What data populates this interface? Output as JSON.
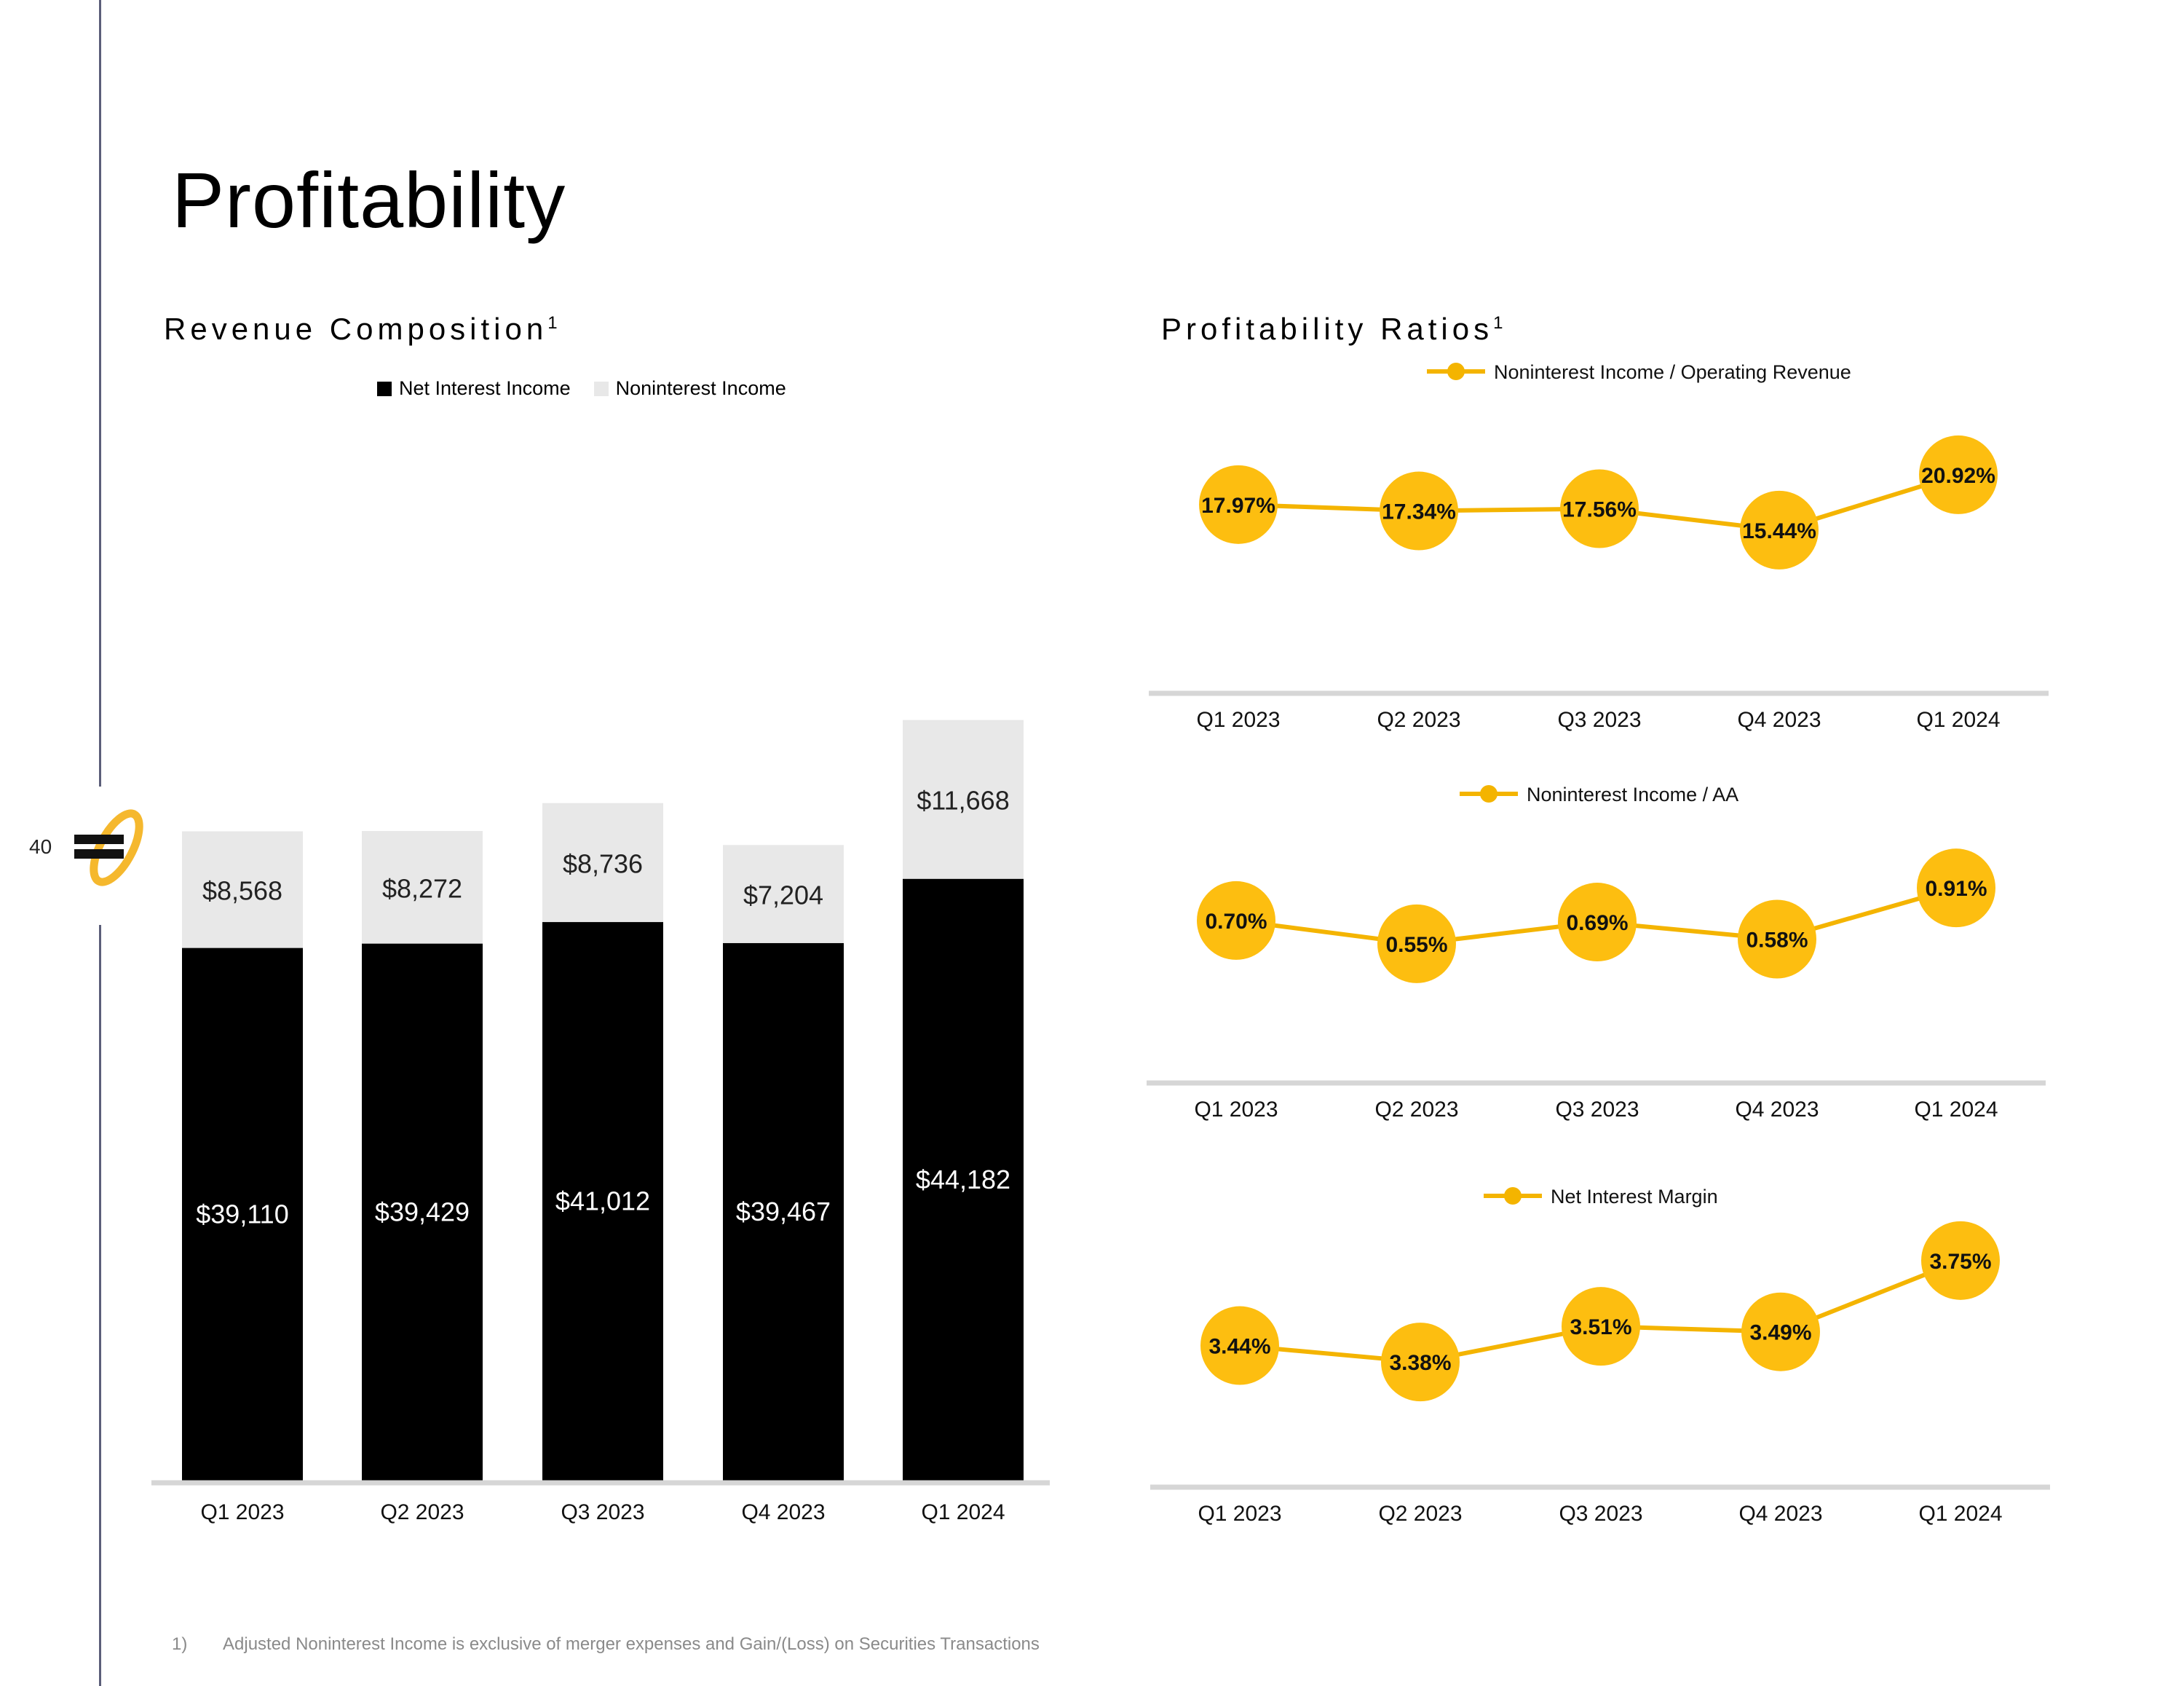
{
  "page": {
    "title": "Profitability",
    "page_number": "40",
    "footnote_number": "1)",
    "footnote_text": "Adjusted Noninterest Income is exclusive of merger expenses and Gain/(Loss) on Securities Transactions"
  },
  "colors": {
    "accent": "#FDBE10",
    "line": "#F4B400",
    "dark": "#000000",
    "light": "#E8E8E8",
    "axis": "#D6D6D6",
    "rule": "#5B5E79"
  },
  "sections": {
    "revenue_title": "Revenue Composition",
    "revenue_sup": "1",
    "ratios_title": "Profitability Ratios",
    "ratios_sup": "1"
  },
  "chart_data": [
    {
      "type": "bar",
      "stacked": true,
      "title": "Revenue Composition",
      "categories": [
        "Q1 2023",
        "Q2 2023",
        "Q3 2023",
        "Q4 2023",
        "Q1 2024"
      ],
      "series": [
        {
          "name": "Net Interest Income",
          "values": [
            39110,
            39429,
            41012,
            39467,
            44182
          ],
          "labels": [
            "$39,110",
            "$39,429",
            "$41,012",
            "$39,467",
            "$44,182"
          ]
        },
        {
          "name": "Noninterest Income",
          "values": [
            8568,
            8272,
            8736,
            7204,
            11668
          ],
          "labels": [
            "$8,568",
            "$8,272",
            "$8,736",
            "$7,204",
            "$11,668"
          ]
        }
      ],
      "ylim": [
        0,
        60000
      ],
      "legend": "top-center"
    },
    {
      "type": "line",
      "title": "Noninterest Income / Operating Revenue",
      "categories": [
        "Q1 2023",
        "Q2 2023",
        "Q3 2023",
        "Q4 2023",
        "Q1 2024"
      ],
      "values": [
        17.97,
        17.34,
        17.56,
        15.44,
        20.92
      ],
      "labels": [
        "17.97%",
        "17.34%",
        "17.56%",
        "15.44%",
        "20.92%"
      ],
      "ylim": [
        0,
        22.5
      ],
      "legend": "top-center"
    },
    {
      "type": "line",
      "title": "Noninterest Income / AA",
      "categories": [
        "Q1 2023",
        "Q2 2023",
        "Q3 2023",
        "Q4 2023",
        "Q1 2024"
      ],
      "values": [
        0.7,
        0.55,
        0.69,
        0.58,
        0.91
      ],
      "labels": [
        "0.70%",
        "0.55%",
        "0.69%",
        "0.58%",
        "0.91%"
      ],
      "ylim": [
        -0.3,
        1.0
      ],
      "legend": "top-center"
    },
    {
      "type": "line",
      "title": "Net Interest Margin",
      "categories": [
        "Q1 2023",
        "Q2 2023",
        "Q3 2023",
        "Q4 2023",
        "Q1 2024"
      ],
      "values": [
        3.44,
        3.38,
        3.51,
        3.49,
        3.75
      ],
      "labels": [
        "3.44%",
        "3.38%",
        "3.51%",
        "3.49%",
        "3.75%"
      ],
      "ylim": [
        2.95,
        3.8
      ],
      "legend": "top-center"
    }
  ]
}
